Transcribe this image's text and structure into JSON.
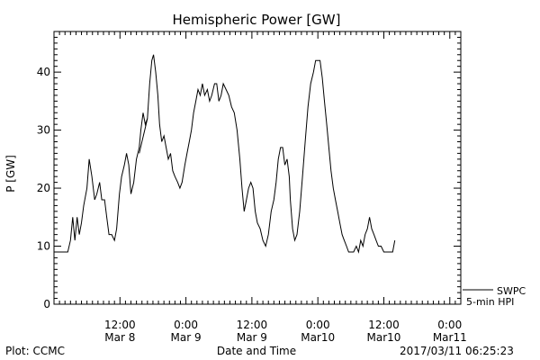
{
  "chart_data": {
    "type": "line",
    "title": "Hemispheric Power [GW]",
    "xlabel": "Date and Time",
    "ylabel": "P [GW]",
    "ylim": [
      0,
      47
    ],
    "y_ticks": [
      0,
      10,
      20,
      30,
      40
    ],
    "x_ticks": [
      {
        "t": 12,
        "line1": "12:00",
        "line2": "Mar 8"
      },
      {
        "t": 24,
        "line1": "0:00",
        "line2": "Mar 9"
      },
      {
        "t": 36,
        "line1": "12:00",
        "line2": "Mar 9"
      },
      {
        "t": 48,
        "line1": "0:00",
        "line2": "Mar10"
      },
      {
        "t": 60,
        "line1": "12:00",
        "line2": "Mar10"
      },
      {
        "t": 72,
        "line1": "0:00",
        "line2": "Mar11"
      }
    ],
    "x_range_hours": [
      0,
      74
    ],
    "x_reference": "2017-03-08 00:00 minus 12 h",
    "legend": {
      "line1": "SWPC",
      "line2": "5-min HPI",
      "placement": "right"
    },
    "series": [
      {
        "name": "SWPC 5-min HPI",
        "color": "#000000",
        "points": [
          [
            0,
            9
          ],
          [
            2.5,
            9
          ],
          [
            3.0,
            11
          ],
          [
            3.4,
            15
          ],
          [
            3.8,
            11
          ],
          [
            4.2,
            15
          ],
          [
            4.6,
            12
          ],
          [
            5.0,
            14
          ],
          [
            5.4,
            17
          ],
          [
            6.0,
            20
          ],
          [
            6.4,
            25
          ],
          [
            6.9,
            22
          ],
          [
            7.4,
            18
          ],
          [
            7.8,
            19
          ],
          [
            8.3,
            21
          ],
          [
            8.7,
            18
          ],
          [
            9.2,
            18
          ],
          [
            9.6,
            15
          ],
          [
            10.0,
            12
          ],
          [
            10.5,
            12
          ],
          [
            11.0,
            11
          ],
          [
            11.4,
            13
          ],
          [
            11.9,
            19
          ],
          [
            12.3,
            22
          ],
          [
            12.8,
            24
          ],
          [
            13.2,
            26
          ],
          [
            13.6,
            24
          ],
          [
            14.0,
            19
          ],
          [
            14.5,
            21
          ],
          [
            15.0,
            25
          ],
          [
            15.5,
            27
          ],
          [
            15.8,
            30
          ],
          [
            16.2,
            33
          ],
          [
            16.6,
            31
          ],
          [
            17.0,
            32
          ],
          [
            17.4,
            38
          ],
          [
            17.8,
            42
          ],
          [
            18.1,
            43
          ],
          [
            18.5,
            40
          ],
          [
            18.9,
            36
          ],
          [
            19.2,
            31
          ],
          [
            19.6,
            28
          ],
          [
            20.0,
            29
          ],
          [
            20.4,
            27
          ],
          [
            20.8,
            25
          ],
          [
            21.2,
            26
          ],
          [
            21.6,
            23
          ],
          [
            22.0,
            22
          ],
          [
            22.5,
            21
          ],
          [
            22.9,
            20
          ],
          [
            23.3,
            21
          ],
          [
            23.8,
            24
          ],
          [
            24.2,
            26
          ],
          [
            24.6,
            28
          ],
          [
            25.0,
            30
          ],
          [
            25.4,
            33
          ],
          [
            25.8,
            35
          ],
          [
            26.2,
            37
          ],
          [
            26.6,
            36
          ],
          [
            27.0,
            38
          ],
          [
            27.4,
            36
          ],
          [
            27.9,
            37
          ],
          [
            28.3,
            35
          ],
          [
            28.7,
            36
          ],
          [
            29.2,
            38
          ],
          [
            29.6,
            38
          ],
          [
            30.0,
            35
          ],
          [
            30.4,
            36
          ],
          [
            30.8,
            38
          ],
          [
            31.3,
            37
          ],
          [
            31.8,
            36
          ],
          [
            32.3,
            34
          ],
          [
            32.8,
            33
          ],
          [
            33.3,
            30
          ],
          [
            33.8,
            25
          ],
          [
            34.2,
            20
          ],
          [
            34.6,
            16
          ],
          [
            35.0,
            18
          ],
          [
            35.4,
            20
          ],
          [
            35.8,
            21
          ],
          [
            36.2,
            20
          ],
          [
            36.6,
            16
          ],
          [
            37.0,
            14
          ],
          [
            37.5,
            13
          ],
          [
            38.0,
            11
          ],
          [
            38.5,
            10
          ],
          [
            39.0,
            12
          ],
          [
            39.5,
            16
          ],
          [
            40.0,
            18
          ],
          [
            40.4,
            21
          ],
          [
            40.8,
            25
          ],
          [
            41.2,
            27
          ],
          [
            41.6,
            27
          ],
          [
            42.0,
            24
          ],
          [
            42.4,
            25
          ],
          [
            42.8,
            22
          ],
          [
            43.0,
            18
          ],
          [
            43.4,
            13
          ],
          [
            43.8,
            11
          ],
          [
            44.2,
            12
          ],
          [
            44.7,
            16
          ],
          [
            45.2,
            22
          ],
          [
            45.7,
            28
          ],
          [
            46.2,
            34
          ],
          [
            46.7,
            38
          ],
          [
            47.2,
            40
          ],
          [
            47.6,
            42
          ],
          [
            48.0,
            42
          ],
          [
            48.4,
            42
          ],
          [
            48.8,
            39
          ],
          [
            49.2,
            35
          ],
          [
            49.6,
            31
          ],
          [
            50.0,
            27
          ],
          [
            50.4,
            23
          ],
          [
            50.8,
            20
          ],
          [
            51.2,
            18
          ],
          [
            51.6,
            16
          ],
          [
            52.0,
            14
          ],
          [
            52.4,
            12
          ],
          [
            52.8,
            11
          ],
          [
            53.2,
            10
          ],
          [
            53.6,
            9
          ],
          [
            54.0,
            9
          ],
          [
            54.5,
            9
          ],
          [
            55.0,
            10
          ],
          [
            55.4,
            9
          ],
          [
            55.8,
            11
          ],
          [
            56.2,
            10
          ],
          [
            56.6,
            12
          ],
          [
            57.0,
            13
          ],
          [
            57.4,
            15
          ],
          [
            57.8,
            13
          ],
          [
            58.2,
            12
          ],
          [
            58.6,
            11
          ],
          [
            59.0,
            10
          ],
          [
            59.5,
            10
          ],
          [
            60.0,
            9
          ],
          [
            61.0,
            9
          ],
          [
            61.6,
            9
          ],
          [
            62.0,
            11
          ]
        ]
      },
      {
        "name": "",
        "color": "#000000",
        "points": [
          [
            15.5,
            26
          ],
          [
            16.0,
            28
          ],
          [
            16.5,
            30
          ],
          [
            17.0,
            32
          ]
        ]
      }
    ],
    "annotations": {
      "left": "Plot: CCMC",
      "right": "2017/03/11 06:25:23"
    }
  }
}
